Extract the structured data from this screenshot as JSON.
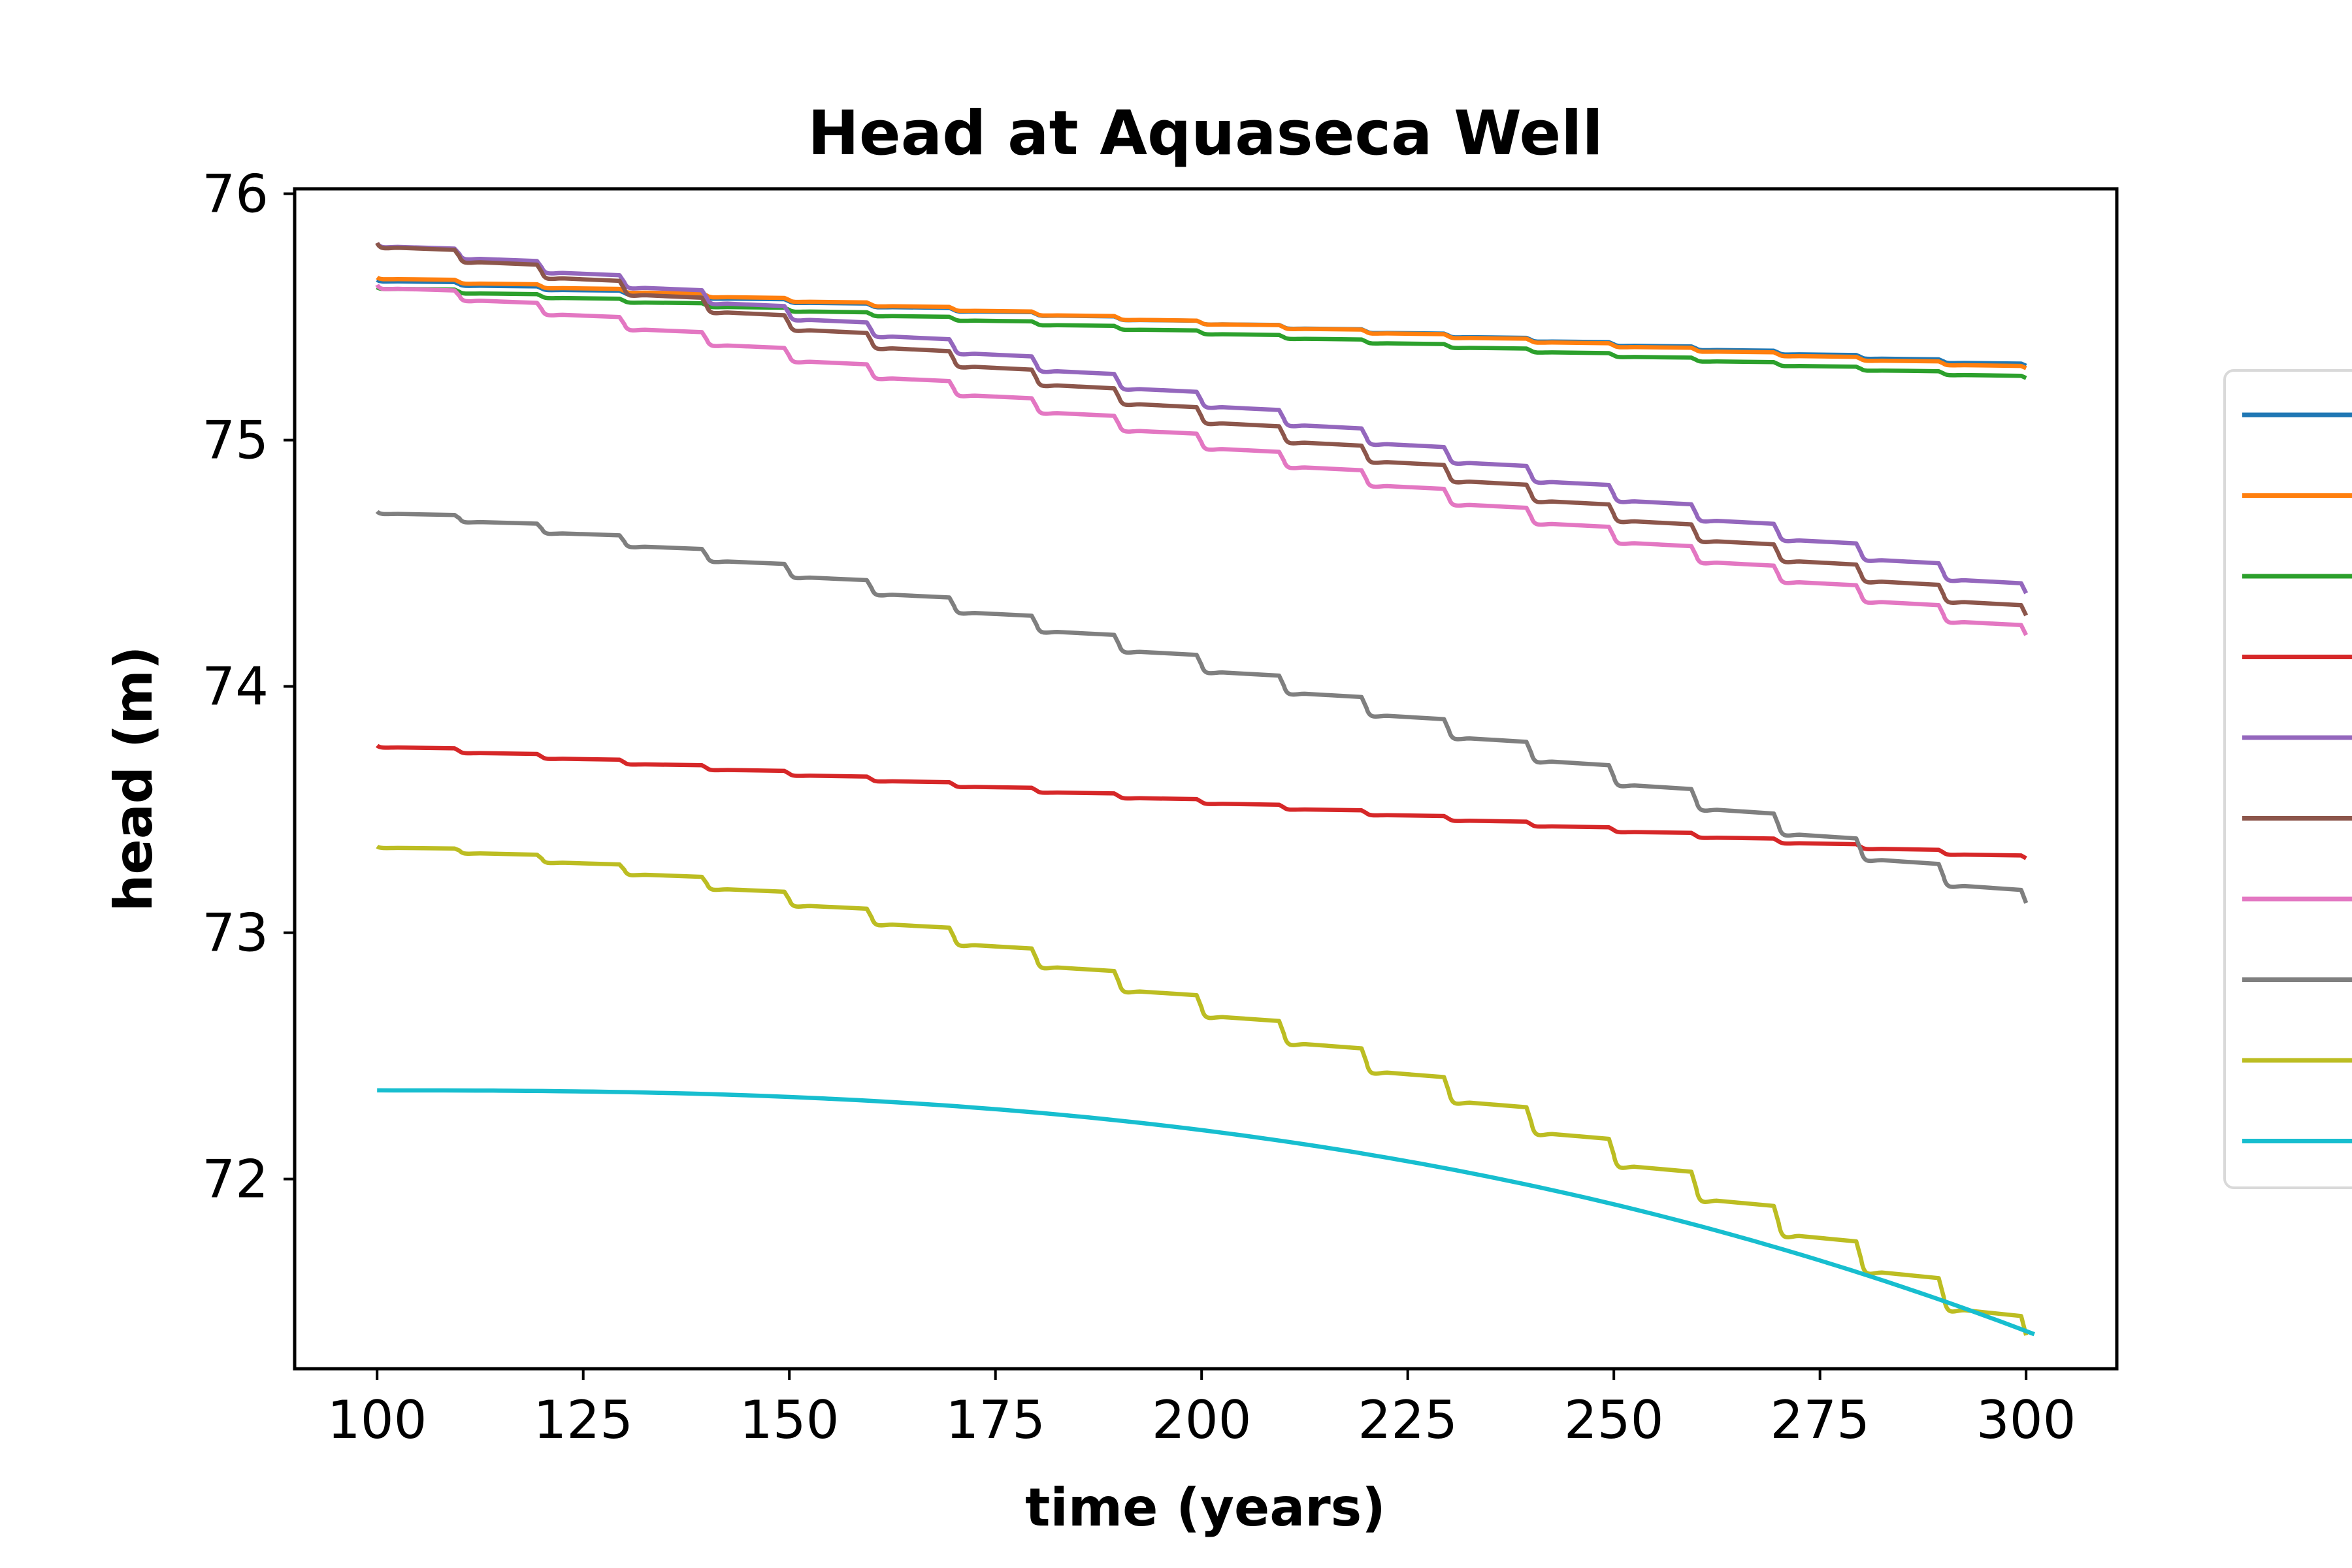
{
  "chart_data": {
    "type": "line",
    "title": "Head at Aquaseca Well",
    "xlabel": "time (years)",
    "ylabel": "head (m)",
    "xlim": [
      90,
      311
    ],
    "ylim": [
      71.23,
      76.02
    ],
    "xticks": [
      100,
      125,
      150,
      175,
      200,
      225,
      250,
      275,
      300
    ],
    "yticks": [
      72,
      73,
      74,
      75,
      76
    ],
    "x_range": [
      100,
      301
    ],
    "grid": false,
    "legend_placement": "right, outside plot area (clipped, no labels visible)",
    "series": [
      {
        "color": "#1f77b4",
        "start": 75.65,
        "end": 75.3,
        "stepped": true,
        "curve": 1.0
      },
      {
        "color": "#ff7f0e",
        "start": 75.66,
        "end": 75.29,
        "stepped": true,
        "curve": 1.0
      },
      {
        "color": "#2ca02c",
        "start": 75.62,
        "end": 75.25,
        "stepped": true,
        "curve": 1.0
      },
      {
        "color": "#d62728",
        "start": 73.76,
        "end": 73.3,
        "stepped": true,
        "curve": 1.0
      },
      {
        "color": "#9467bd",
        "start": 75.8,
        "end": 74.37,
        "stepped": true,
        "curve": 1.15
      },
      {
        "color": "#8c564b",
        "start": 75.8,
        "end": 74.28,
        "stepped": true,
        "curve": 1.1
      },
      {
        "color": "#e377c2",
        "start": 75.63,
        "end": 74.2,
        "stepped": true,
        "curve": 1.15
      },
      {
        "color": "#7f7f7f",
        "start": 74.71,
        "end": 73.11,
        "stepped": true,
        "curve": 1.35
      },
      {
        "color": "#bcbd22",
        "start": 73.35,
        "end": 71.35,
        "stepped": true,
        "curve": 1.6
      },
      {
        "color": "#17becf",
        "start": 72.36,
        "end": 71.37,
        "stepped": false,
        "curve": 2.6
      }
    ]
  }
}
